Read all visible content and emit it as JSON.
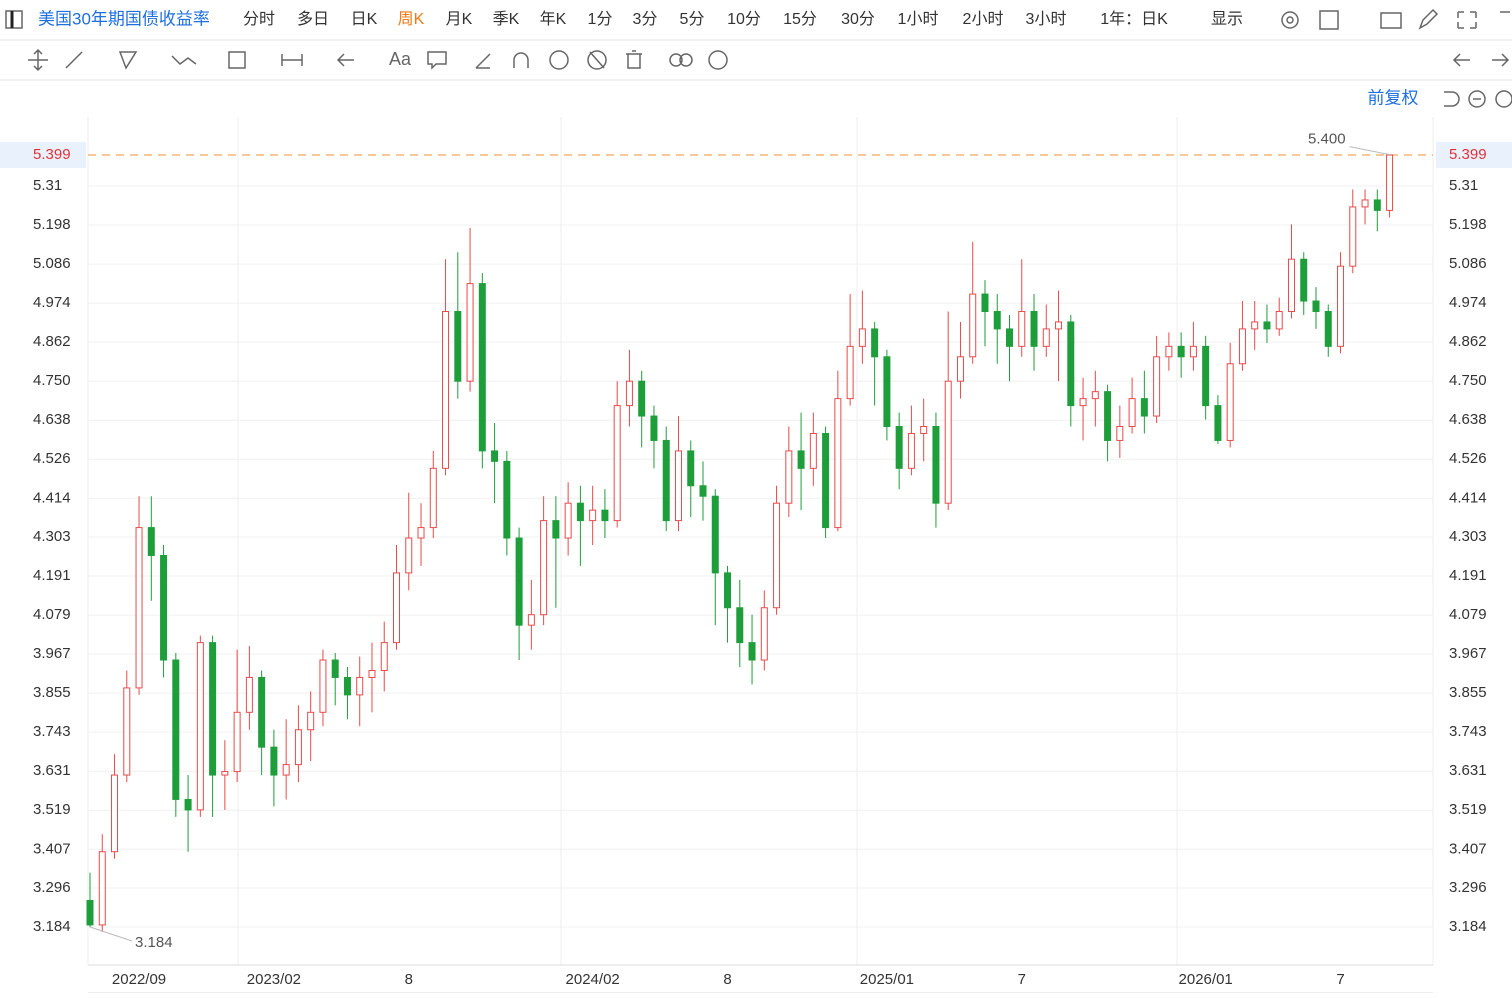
{
  "toolbar": {
    "title": "美国30年期国债收益率",
    "periods": [
      "分时",
      "多日",
      "日K",
      "周K",
      "月K",
      "季K",
      "年K",
      "1分",
      "3分",
      "5分",
      "10分",
      "15分",
      "30分",
      "1小时",
      "2小时",
      "3小时"
    ],
    "range": "1年：日K",
    "display": "显示",
    "adjust": "前复权"
  },
  "chart_data": {
    "type": "candlestick",
    "categories": [
      null,
      null,
      null,
      null,
      "2022/09",
      null,
      null,
      null,
      null,
      null,
      null,
      null,
      null,
      null,
      null,
      "2023/02",
      null,
      null,
      null,
      null,
      null,
      null,
      null,
      null,
      null,
      null,
      "8",
      null,
      null,
      null,
      null,
      null,
      null,
      null,
      null,
      null,
      null,
      null,
      null,
      null,
      null,
      "2024/02",
      null,
      null,
      null,
      null,
      null,
      null,
      null,
      null,
      null,
      null,
      "8",
      null,
      null,
      null,
      null,
      null,
      null,
      null,
      null,
      null,
      null,
      null,
      null,
      "2025/01",
      null,
      null,
      null,
      null,
      null,
      null,
      null,
      null,
      null,
      null,
      "7",
      null,
      null,
      null,
      null,
      null,
      null,
      null,
      null,
      null,
      null,
      null,
      null,
      null,
      null,
      "2026/01",
      null,
      null,
      null,
      null,
      null,
      null,
      null,
      null,
      null,
      null,
      "7",
      null,
      null,
      null,
      null
    ],
    "open": [
      3.26,
      3.19,
      3.4,
      3.62,
      3.87,
      4.33,
      4.25,
      3.95,
      3.55,
      3.52,
      4.0,
      3.62,
      3.63,
      3.8,
      3.9,
      3.7,
      3.62,
      3.65,
      3.75,
      3.8,
      3.95,
      3.9,
      3.85,
      3.9,
      3.92,
      4.0,
      4.2,
      4.3,
      4.33,
      4.5,
      4.95,
      4.75,
      5.03,
      4.55,
      4.52,
      4.3,
      4.05,
      4.08,
      4.35,
      4.3,
      4.4,
      4.35,
      4.38,
      4.35,
      4.68,
      4.75,
      4.65,
      4.58,
      4.35,
      4.55,
      4.45,
      4.42,
      4.2,
      4.1,
      4.0,
      3.95,
      4.1,
      4.4,
      4.55,
      4.5,
      4.6,
      4.33,
      4.7,
      4.85,
      4.9,
      4.82,
      4.62,
      4.5,
      4.6,
      4.62,
      4.4,
      4.75,
      4.82,
      5.0,
      4.95,
      4.9,
      4.85,
      4.95,
      4.85,
      4.9,
      4.92,
      4.68,
      4.7,
      4.72,
      4.58,
      4.62,
      4.7,
      4.65,
      4.82,
      4.85,
      4.82,
      4.85,
      4.68,
      4.58,
      4.8,
      4.9,
      4.92,
      4.9,
      4.95,
      5.1,
      4.98,
      4.95,
      4.85,
      5.08,
      5.25,
      5.27,
      5.24
    ],
    "high": [
      3.34,
      3.45,
      3.68,
      3.92,
      4.42,
      4.42,
      4.28,
      3.97,
      3.62,
      4.02,
      4.02,
      3.72,
      3.98,
      3.99,
      3.92,
      3.75,
      3.78,
      3.82,
      3.86,
      3.98,
      3.97,
      3.93,
      3.96,
      4.0,
      4.06,
      4.28,
      4.43,
      4.4,
      4.55,
      5.1,
      5.12,
      5.19,
      5.06,
      4.63,
      4.55,
      4.33,
      4.18,
      4.42,
      4.42,
      4.46,
      4.45,
      4.45,
      4.44,
      4.75,
      4.84,
      4.78,
      4.68,
      4.62,
      4.65,
      4.58,
      4.52,
      4.44,
      4.22,
      4.18,
      4.08,
      4.15,
      4.45,
      4.62,
      4.66,
      4.66,
      4.62,
      4.78,
      5.0,
      5.01,
      4.92,
      4.84,
      4.66,
      4.68,
      4.7,
      4.66,
      4.95,
      4.92,
      5.15,
      5.04,
      5.0,
      4.94,
      5.1,
      5.0,
      4.97,
      5.01,
      4.94,
      4.76,
      4.78,
      4.74,
      4.68,
      4.76,
      4.78,
      4.88,
      4.89,
      4.89,
      4.92,
      4.88,
      4.71,
      4.86,
      4.98,
      4.98,
      4.97,
      4.99,
      5.2,
      5.12,
      5.02,
      4.97,
      5.12,
      5.3,
      5.3,
      5.3,
      5.4
    ],
    "low": [
      3.184,
      3.17,
      3.38,
      3.6,
      3.85,
      4.12,
      3.9,
      3.5,
      3.4,
      3.5,
      3.5,
      3.52,
      3.6,
      3.75,
      3.62,
      3.53,
      3.55,
      3.6,
      3.66,
      3.76,
      3.82,
      3.78,
      3.76,
      3.8,
      3.86,
      3.98,
      4.15,
      4.22,
      4.3,
      4.48,
      4.7,
      4.72,
      4.5,
      4.4,
      4.25,
      3.95,
      3.98,
      4.05,
      4.1,
      4.25,
      4.22,
      4.28,
      4.3,
      4.33,
      4.62,
      4.56,
      4.5,
      4.32,
      4.32,
      4.36,
      4.35,
      4.05,
      4.0,
      3.93,
      3.88,
      3.92,
      4.08,
      4.36,
      4.38,
      4.45,
      4.3,
      4.32,
      4.68,
      4.8,
      4.68,
      4.58,
      4.44,
      4.48,
      4.52,
      4.33,
      4.38,
      4.7,
      4.8,
      4.85,
      4.8,
      4.75,
      4.82,
      4.78,
      4.82,
      4.75,
      4.62,
      4.58,
      4.62,
      4.52,
      4.53,
      4.6,
      4.6,
      4.63,
      4.78,
      4.76,
      4.78,
      4.64,
      4.57,
      4.56,
      4.78,
      4.84,
      4.86,
      4.88,
      4.93,
      4.94,
      4.9,
      4.82,
      4.83,
      5.06,
      5.2,
      5.18,
      5.22
    ],
    "close": [
      3.19,
      3.4,
      3.62,
      3.87,
      4.33,
      4.25,
      3.95,
      3.55,
      3.52,
      4.0,
      3.62,
      3.63,
      3.8,
      3.9,
      3.7,
      3.62,
      3.65,
      3.75,
      3.8,
      3.95,
      3.9,
      3.85,
      3.9,
      3.92,
      4.0,
      4.2,
      4.3,
      4.33,
      4.5,
      4.95,
      4.75,
      5.03,
      4.55,
      4.52,
      4.3,
      4.05,
      4.08,
      4.35,
      4.3,
      4.4,
      4.35,
      4.38,
      4.35,
      4.68,
      4.75,
      4.65,
      4.58,
      4.35,
      4.55,
      4.45,
      4.42,
      4.2,
      4.1,
      4.0,
      3.95,
      4.1,
      4.4,
      4.55,
      4.5,
      4.6,
      4.33,
      4.7,
      4.85,
      4.9,
      4.82,
      4.62,
      4.5,
      4.6,
      4.62,
      4.4,
      4.75,
      4.82,
      5.0,
      4.95,
      4.9,
      4.85,
      4.95,
      4.85,
      4.9,
      4.92,
      4.68,
      4.7,
      4.72,
      4.58,
      4.62,
      4.7,
      4.65,
      4.82,
      4.85,
      4.82,
      4.85,
      4.68,
      4.58,
      4.8,
      4.9,
      4.92,
      4.9,
      4.95,
      5.1,
      4.98,
      4.95,
      4.85,
      5.08,
      5.25,
      5.27,
      5.24,
      5.399
    ],
    "up_color": "#e84a4a",
    "down_color": "#1e9e3a",
    "ylim": [
      3.075,
      5.508
    ],
    "yticks": [
      3.184,
      3.296,
      3.407,
      3.519,
      3.631,
      3.743,
      3.855,
      3.967,
      4.079,
      4.191,
      4.303,
      4.414,
      4.526,
      4.638,
      {
        "value": 4.75,
        "label": "4.750"
      },
      4.862,
      4.974,
      5.086,
      5.198,
      5.31
    ],
    "grid": true,
    "last_price": {
      "value": 5.399,
      "label": "5.399"
    },
    "max_label": {
      "value": 5.4,
      "label": "5.400"
    },
    "min_label": {
      "value": 3.184,
      "label": "3.184"
    }
  }
}
